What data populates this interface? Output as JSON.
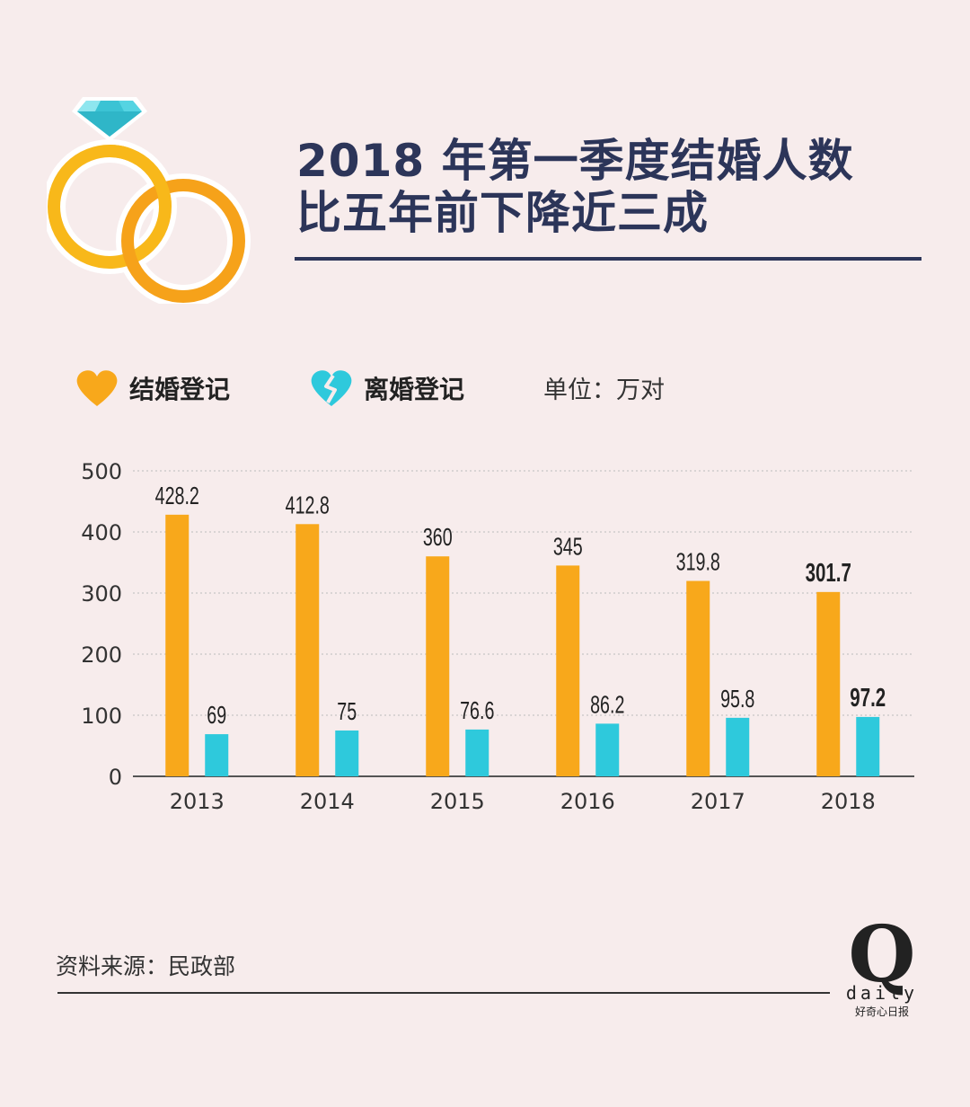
{
  "header": {
    "title_line1": "2018 年第一季度结婚人数",
    "title_line2": "比五年前下降近三成"
  },
  "legend": {
    "marriage": "结婚登记",
    "divorce": "离婚登记",
    "unit": "单位：万对"
  },
  "colors": {
    "background": "#f7ecec",
    "marriage": "#f8a81b",
    "divorce": "#2ec9dc",
    "title": "#2c3559"
  },
  "footer": {
    "source": "资料来源：民政部",
    "logo_letter": "Q",
    "logo_word": "daily",
    "logo_sub": "好奇心日报"
  },
  "chart_data": {
    "type": "bar",
    "title": "2018 年第一季度结婚人数比五年前下降近三成",
    "xlabel": "",
    "ylabel": "",
    "unit": "万对",
    "categories": [
      "2013",
      "2014",
      "2015",
      "2016",
      "2017",
      "2018"
    ],
    "series": [
      {
        "name": "结婚登记",
        "values": [
          428.2,
          412.8,
          360,
          345,
          319.8,
          301.7
        ],
        "labels": [
          "428.2",
          "412.8",
          "360",
          "345",
          "319.8",
          "301.7"
        ]
      },
      {
        "name": "离婚登记",
        "values": [
          69,
          75,
          76.6,
          86.2,
          95.8,
          97.2
        ],
        "labels": [
          "69",
          "75",
          "76.6",
          "86.2",
          "95.8",
          "97.2"
        ]
      }
    ],
    "ylim": [
      0,
      500
    ],
    "yticks": [
      0,
      100,
      200,
      300,
      400,
      500
    ],
    "grid": true,
    "highlight_category": "2018"
  }
}
